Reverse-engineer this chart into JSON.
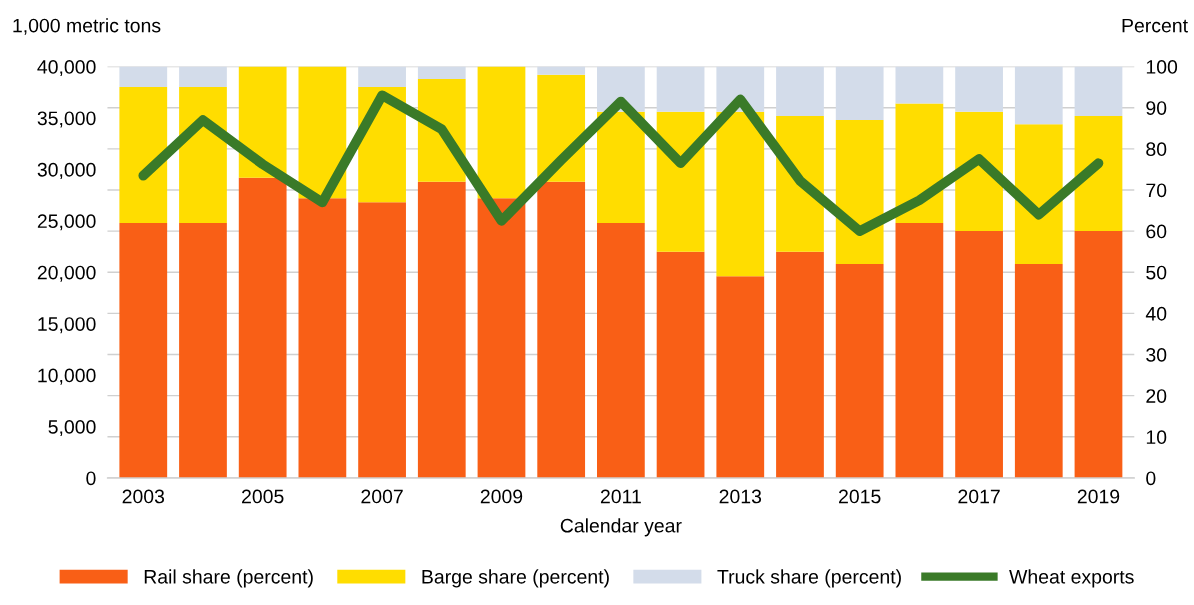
{
  "chart_data": {
    "type": "bar",
    "stacked": true,
    "xlabel": "Calendar year",
    "ylabel": "1,000 metric tons",
    "y2label": "Percent",
    "categories": [
      "2003",
      null,
      "2005",
      null,
      "2007",
      null,
      "2009",
      null,
      "2011",
      null,
      "2013",
      null,
      "2015",
      null,
      "2017",
      null,
      "2019"
    ],
    "series": [
      {
        "name": "Rail share (percent)",
        "axis": "y2",
        "color": "#f95f16",
        "values": [
          62,
          62,
          73,
          68,
          67,
          72,
          68,
          72,
          62,
          55,
          49,
          55,
          52,
          62,
          60,
          52,
          60
        ]
      },
      {
        "name": "Barge share (percent)",
        "axis": "y2",
        "color": "#ffdd00",
        "values": [
          33,
          33,
          27,
          32,
          28,
          25,
          32,
          26,
          27,
          34,
          40,
          33,
          35,
          29,
          29,
          34,
          28
        ]
      },
      {
        "name": "Truck share (percent)",
        "axis": "y2",
        "color": "#d3dcea",
        "values": [
          5,
          5,
          0,
          0,
          5,
          3,
          0,
          2,
          11,
          11,
          11,
          12,
          13,
          9,
          11,
          14,
          12
        ]
      },
      {
        "name": "Wheat exports",
        "type": "line",
        "axis": "y",
        "color": "#3a7a28",
        "values": [
          29400,
          34800,
          30500,
          26800,
          37200,
          33900,
          25000,
          30900,
          36600,
          30600,
          36800,
          28900,
          24000,
          27000,
          31000,
          25600,
          30600
        ]
      }
    ],
    "ylim": [
      0,
      40000
    ],
    "yticks": [
      {
        "value": 0,
        "label": "0"
      },
      {
        "value": 5000,
        "label": "5,000"
      },
      {
        "value": 10000,
        "label": "10,000"
      },
      {
        "value": 15000,
        "label": "15,000"
      },
      {
        "value": 20000,
        "label": "20,000"
      },
      {
        "value": 25000,
        "label": "25,000"
      },
      {
        "value": 30000,
        "label": "30,000"
      },
      {
        "value": 35000,
        "label": "35,000"
      },
      {
        "value": 40000,
        "label": "40,000"
      }
    ],
    "y2lim": [
      0,
      100
    ],
    "y2ticks": [
      0,
      10,
      20,
      30,
      40,
      50,
      60,
      70,
      80,
      90,
      100
    ],
    "grid": "y",
    "legend": "bottom",
    "marker": "none",
    "line_style": "solid"
  }
}
